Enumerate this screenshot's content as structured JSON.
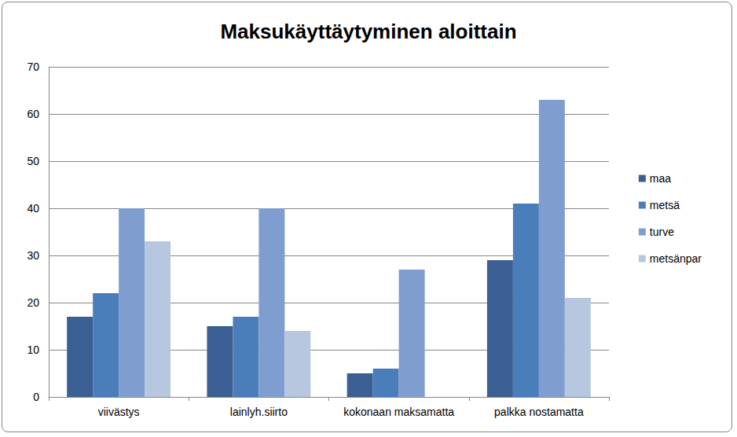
{
  "chart_data": {
    "type": "bar",
    "title": "Maksukäyttäytyminen aloittain",
    "categories": [
      "viivästys",
      "lainlyh.siirto",
      "kokonaan maksamatta",
      "palkka nostamatta"
    ],
    "series": [
      {
        "name": "maa",
        "color": "#3b5f92",
        "values": [
          17,
          15,
          5,
          29
        ]
      },
      {
        "name": "metsä",
        "color": "#4a7ebb",
        "values": [
          22,
          17,
          6,
          41
        ]
      },
      {
        "name": "turve",
        "color": "#7f9ecf",
        "values": [
          40,
          40,
          27,
          63
        ]
      },
      {
        "name": "metsänpar",
        "color": "#b8c7e0",
        "values": [
          33,
          14,
          0,
          21
        ]
      }
    ],
    "ylim": [
      0,
      70
    ],
    "yticks": [
      0,
      10,
      20,
      30,
      40,
      50,
      60,
      70
    ],
    "grid": true,
    "legend": "right"
  }
}
